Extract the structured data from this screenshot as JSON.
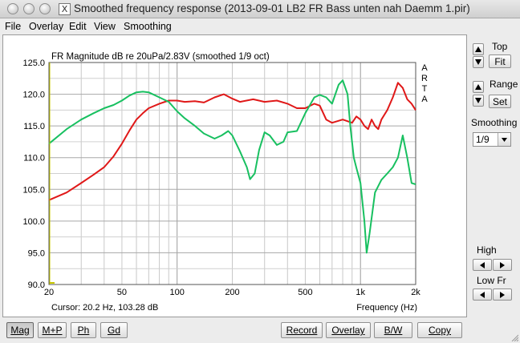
{
  "window": {
    "title": "Smoothed frequency response (2013-09-01 LB2 FR Bass unten nah Daemm 1.pir)"
  },
  "menu": [
    "File",
    "Overlay",
    "Edit",
    "View",
    "Smoothing"
  ],
  "plot": {
    "header": "FR Magnitude dB re 20uPa/2.83V (smoothed 1/9 oct)",
    "brand": [
      "A",
      "R",
      "T",
      "A"
    ],
    "cursor": "Cursor: 20.2 Hz, 103.28 dB",
    "xlabel": "Frequency (Hz)"
  },
  "side": {
    "top_label": "Top",
    "fit_label": "Fit",
    "range_label": "Range",
    "set_label": "Set",
    "smoothing_label": "Smoothing",
    "smoothing_value": "1/9",
    "high_label": "High",
    "lowfr_label": "Low Fr"
  },
  "bottom": {
    "mag": "Mag",
    "mp": "M+P",
    "ph": "Ph",
    "gd": "Gd",
    "record": "Record",
    "overlay": "Overlay",
    "bw": "B/W",
    "copy": "Copy"
  },
  "colors": {
    "red": "#e01818",
    "green": "#18c060",
    "cursor": "#c8c800"
  },
  "chart_data": {
    "type": "line",
    "title": "FR Magnitude dB re 20uPa/2.83V (smoothed 1/9 oct)",
    "xlabel": "Frequency (Hz)",
    "ylabel": "",
    "xscale": "log",
    "xlim": [
      20,
      2000
    ],
    "ylim": [
      90,
      125
    ],
    "x_ticks": [
      20,
      50,
      100,
      200,
      500,
      1000,
      2000
    ],
    "x_tick_labels": [
      "20",
      "50",
      "100",
      "200",
      "500",
      "1k",
      "2k"
    ],
    "y_ticks": [
      90,
      95,
      100,
      105,
      110,
      115,
      120,
      125
    ],
    "y_tick_labels": [
      "90.0",
      "95.0",
      "100.0",
      "105.0",
      "110.0",
      "115.0",
      "120.0",
      "125.0"
    ],
    "grid": true,
    "series": [
      {
        "color": "#e01818",
        "points": [
          [
            20,
            103.3
          ],
          [
            25,
            104.5
          ],
          [
            30,
            106
          ],
          [
            35,
            107.3
          ],
          [
            40,
            108.5
          ],
          [
            45,
            110.2
          ],
          [
            50,
            112.2
          ],
          [
            55,
            114.3
          ],
          [
            60,
            116
          ],
          [
            65,
            117
          ],
          [
            70,
            117.8
          ],
          [
            80,
            118.5
          ],
          [
            90,
            119
          ],
          [
            100,
            119
          ],
          [
            110,
            118.8
          ],
          [
            125,
            118.9
          ],
          [
            140,
            118.7
          ],
          [
            160,
            119.5
          ],
          [
            180,
            120
          ],
          [
            200,
            119.3
          ],
          [
            220,
            118.8
          ],
          [
            260,
            119.2
          ],
          [
            300,
            118.8
          ],
          [
            350,
            119
          ],
          [
            400,
            118.5
          ],
          [
            450,
            117.8
          ],
          [
            500,
            117.8
          ],
          [
            560,
            118.5
          ],
          [
            600,
            118.2
          ],
          [
            650,
            116
          ],
          [
            700,
            115.5
          ],
          [
            800,
            116
          ],
          [
            900,
            115.5
          ],
          [
            950,
            116.5
          ],
          [
            1000,
            116
          ],
          [
            1050,
            115
          ],
          [
            1100,
            114.5
          ],
          [
            1150,
            116
          ],
          [
            1200,
            115
          ],
          [
            1250,
            114.5
          ],
          [
            1300,
            116
          ],
          [
            1400,
            117.5
          ],
          [
            1500,
            119.5
          ],
          [
            1600,
            121.8
          ],
          [
            1700,
            121
          ],
          [
            1800,
            119.2
          ],
          [
            1900,
            118.5
          ],
          [
            2000,
            117.5
          ]
        ]
      },
      {
        "color": "#18c060",
        "points": [
          [
            20,
            112.2
          ],
          [
            25,
            114.5
          ],
          [
            30,
            116
          ],
          [
            35,
            117
          ],
          [
            40,
            117.8
          ],
          [
            45,
            118.3
          ],
          [
            50,
            119
          ],
          [
            55,
            119.8
          ],
          [
            60,
            120.3
          ],
          [
            65,
            120.4
          ],
          [
            70,
            120.3
          ],
          [
            80,
            119.5
          ],
          [
            90,
            118.8
          ],
          [
            100,
            117.3
          ],
          [
            110,
            116.2
          ],
          [
            125,
            115
          ],
          [
            140,
            113.8
          ],
          [
            160,
            113
          ],
          [
            175,
            113.5
          ],
          [
            190,
            114.2
          ],
          [
            200,
            113.5
          ],
          [
            220,
            111
          ],
          [
            240,
            108.5
          ],
          [
            250,
            106.6
          ],
          [
            265,
            107.5
          ],
          [
            280,
            111.2
          ],
          [
            300,
            114
          ],
          [
            320,
            113.5
          ],
          [
            350,
            112
          ],
          [
            380,
            112.5
          ],
          [
            400,
            114
          ],
          [
            450,
            114.2
          ],
          [
            500,
            117
          ],
          [
            560,
            119.5
          ],
          [
            600,
            119.9
          ],
          [
            650,
            119.5
          ],
          [
            700,
            118.5
          ],
          [
            760,
            121.5
          ],
          [
            800,
            122.2
          ],
          [
            850,
            120
          ],
          [
            880,
            115
          ],
          [
            920,
            110
          ],
          [
            950,
            108.4
          ],
          [
            1000,
            106
          ],
          [
            1050,
            100
          ],
          [
            1080,
            95
          ],
          [
            1120,
            98
          ],
          [
            1200,
            104.5
          ],
          [
            1300,
            106.5
          ],
          [
            1400,
            107.5
          ],
          [
            1500,
            108.5
          ],
          [
            1600,
            110
          ],
          [
            1700,
            113.5
          ],
          [
            1800,
            110
          ],
          [
            1900,
            106
          ],
          [
            2000,
            105.8
          ]
        ]
      }
    ]
  }
}
